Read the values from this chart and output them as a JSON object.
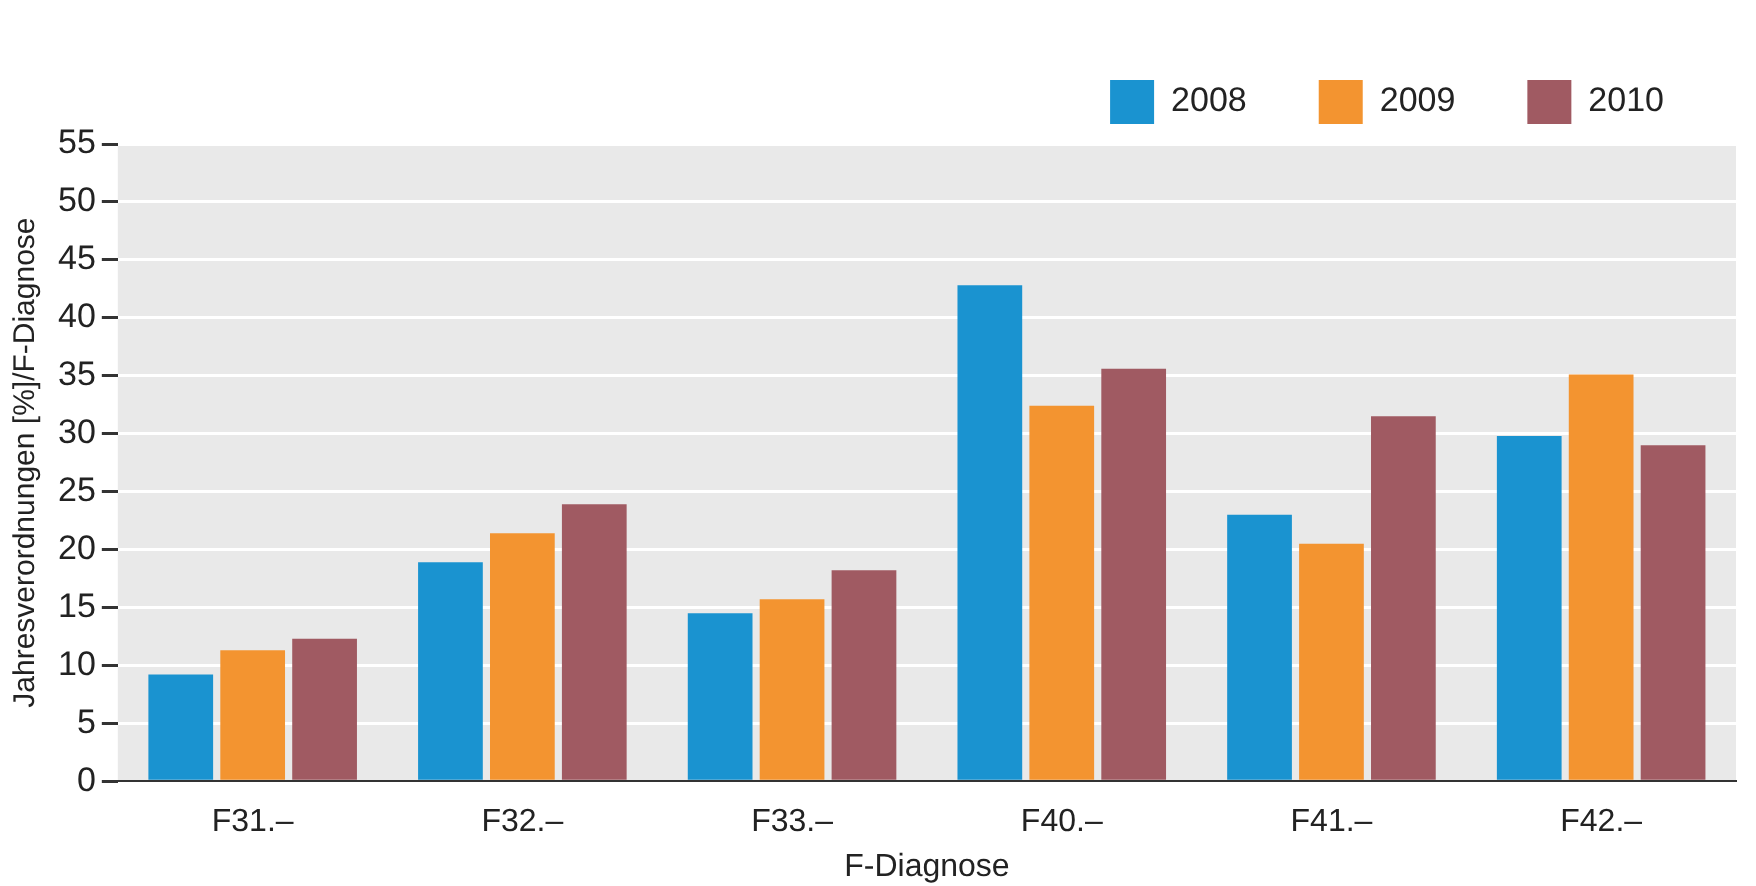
{
  "chart_data": {
    "type": "bar",
    "xlabel": "F-Diagnose",
    "ylabel": "Jahresverordnungen [%]/F-Diagnose",
    "categories": [
      "F31.–",
      "F32.–",
      "F33.–",
      "F40.–",
      "F41.–",
      "F42.–"
    ],
    "series": [
      {
        "name": "2008",
        "color": "#1a93d0",
        "values": [
          9.2,
          18.9,
          14.5,
          42.8,
          23.0,
          29.8
        ]
      },
      {
        "name": "2009",
        "color": "#f39430",
        "values": [
          11.3,
          21.4,
          15.7,
          32.4,
          20.5,
          35.1
        ]
      },
      {
        "name": "2010",
        "color": "#a05a62",
        "values": [
          12.3,
          23.9,
          18.2,
          35.6,
          31.5,
          29.0
        ]
      }
    ],
    "ylim": [
      0,
      55
    ],
    "yticks": [
      0,
      5,
      10,
      15,
      20,
      25,
      30,
      35,
      40,
      45,
      50,
      55
    ],
    "grid": "y",
    "legend": "top right"
  }
}
